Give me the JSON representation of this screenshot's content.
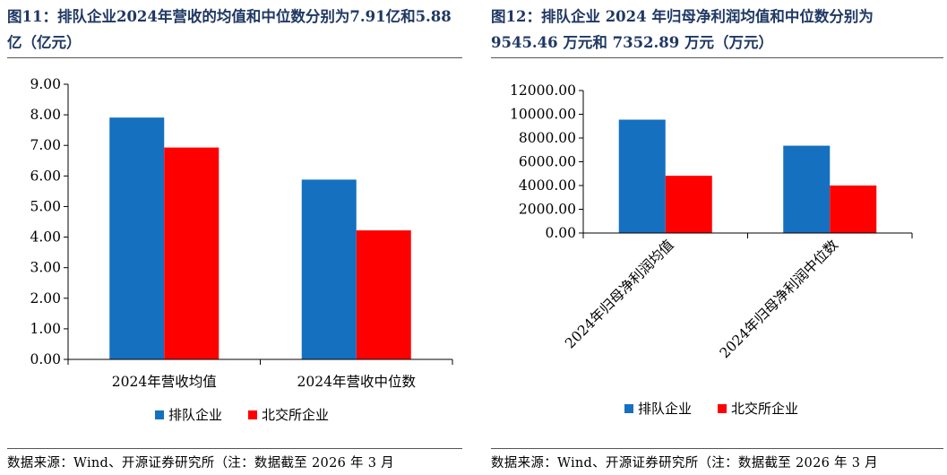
{
  "panels": [
    {
      "title": "图11：排队企业2024年营收的均值和中位数分别为7.91亿和5.88亿（亿元）",
      "source": "数据来源：Wind、开源证券研究所（注：数据截至 2026 年 3 月"
    },
    {
      "title": "图12：排队企业 2024 年归母净利润均值和中位数分别为 9545.46 万元和 7352.89 万元（万元）",
      "source": "数据来源：Wind、开源证券研究所（注：数据截至 2026 年 3 月"
    }
  ],
  "colors": {
    "series1": "#1570C0",
    "series2": "#FF0000",
    "title": "#1f3864"
  },
  "chart_data": [
    {
      "type": "bar",
      "categories": [
        "2024年营收均值",
        "2024年营收中位数"
      ],
      "series": [
        {
          "name": "排队企业",
          "values": [
            7.91,
            5.88
          ]
        },
        {
          "name": "北交所企业",
          "values": [
            6.93,
            4.22
          ]
        }
      ],
      "ylim": [
        0,
        9
      ],
      "yticks": [
        "0.00",
        "1.00",
        "2.00",
        "3.00",
        "4.00",
        "5.00",
        "6.00",
        "7.00",
        "8.00",
        "9.00"
      ],
      "legend": "bottom"
    },
    {
      "type": "bar",
      "categories": [
        "2024年归母净利润均值",
        "2024年归母净利润中位数"
      ],
      "series": [
        {
          "name": "排队企业",
          "values": [
            9545.46,
            7352.89
          ]
        },
        {
          "name": "北交所企业",
          "values": [
            4820,
            4000
          ]
        }
      ],
      "ylim": [
        0,
        12000
      ],
      "yticks": [
        "0.00",
        "2000.00",
        "4000.00",
        "6000.00",
        "8000.00",
        "10000.00",
        "12000.00"
      ],
      "legend": "bottom"
    }
  ]
}
